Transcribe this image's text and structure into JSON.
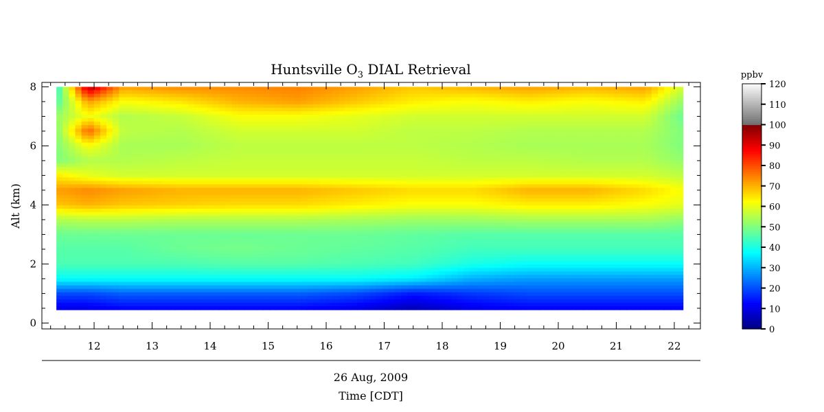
{
  "chart_data": {
    "type": "heatmap",
    "title": "Huntsville O",
    "title_subscript": "3",
    "title_suffix": " DIAL Retrieval",
    "xlabel": "Time [CDT]",
    "xlabel_date": "26 Aug, 2009",
    "ylabel": "Alt (km)",
    "xlim": [
      11.1,
      22.45
    ],
    "ylim": [
      -0.2,
      8.15
    ],
    "x_ticks": [
      12,
      13,
      14,
      15,
      16,
      17,
      18,
      19,
      20,
      21,
      22
    ],
    "y_ticks": [
      0,
      2,
      4,
      6,
      8
    ],
    "data_extent": {
      "x": [
        11.35,
        22.15
      ],
      "y": [
        0.45,
        8.0
      ]
    },
    "colorbar": {
      "label": "ppbv",
      "ticks": [
        0,
        10,
        20,
        30,
        40,
        50,
        60,
        70,
        80,
        90,
        100,
        110,
        120
      ],
      "range": [
        0,
        120
      ],
      "colormap": "jet with grey above 100"
    },
    "profiles": [
      {
        "time": 11.35,
        "altitudes": [
          0.45,
          1.0,
          1.5,
          2.0,
          2.5,
          3.0,
          3.5,
          4.0,
          4.5,
          5.0,
          5.5,
          6.0,
          6.5,
          7.0,
          7.5,
          8.0
        ],
        "ozone": [
          10,
          20,
          38,
          45,
          46,
          48,
          55,
          68,
          72,
          64,
          50,
          50,
          50,
          52,
          45,
          40
        ]
      },
      {
        "time": 11.9,
        "altitudes": [
          0.45,
          1.0,
          1.5,
          2.0,
          2.5,
          3.0,
          3.5,
          4.0,
          4.5,
          5.0,
          5.5,
          6.0,
          6.5,
          7.0,
          7.5,
          8.0
        ],
        "ozone": [
          10,
          20,
          38,
          45,
          46,
          48,
          56,
          70,
          74,
          60,
          55,
          62,
          78,
          62,
          72,
          95
        ]
      },
      {
        "time": 12.5,
        "altitudes": [
          0.45,
          1.0,
          1.5,
          2.0,
          2.5,
          3.0,
          3.5,
          4.0,
          4.5,
          5.0,
          5.5,
          6.0,
          6.5,
          7.0,
          7.5,
          8.0
        ],
        "ozone": [
          12,
          22,
          38,
          45,
          46,
          48,
          56,
          68,
          72,
          58,
          55,
          54,
          56,
          55,
          62,
          72
        ]
      },
      {
        "time": 13.5,
        "altitudes": [
          0.45,
          1.0,
          1.5,
          2.0,
          2.5,
          3.0,
          3.5,
          4.0,
          4.5,
          5.0,
          5.5,
          6.0,
          6.5,
          7.0,
          7.5,
          8.0
        ],
        "ozone": [
          12,
          22,
          38,
          45,
          48,
          48,
          55,
          67,
          70,
          58,
          56,
          54,
          55,
          57,
          65,
          74
        ]
      },
      {
        "time": 14.5,
        "altitudes": [
          0.45,
          1.0,
          1.5,
          2.0,
          2.5,
          3.0,
          3.5,
          4.0,
          4.5,
          5.0,
          5.5,
          6.0,
          6.5,
          7.0,
          7.5,
          8.0
        ],
        "ozone": [
          12,
          22,
          38,
          46,
          49,
          48,
          55,
          66,
          70,
          58,
          57,
          56,
          58,
          62,
          70,
          74
        ]
      },
      {
        "time": 15.5,
        "altitudes": [
          0.45,
          1.0,
          1.5,
          2.0,
          2.5,
          3.0,
          3.5,
          4.0,
          4.5,
          5.0,
          5.5,
          6.0,
          6.5,
          7.0,
          7.5,
          8.0
        ],
        "ozone": [
          12,
          22,
          38,
          46,
          48,
          48,
          55,
          66,
          70,
          58,
          57,
          56,
          58,
          62,
          72,
          75
        ]
      },
      {
        "time": 16.5,
        "altitudes": [
          0.45,
          1.0,
          1.5,
          2.0,
          2.5,
          3.0,
          3.5,
          4.0,
          4.5,
          5.0,
          5.5,
          6.0,
          6.5,
          7.0,
          7.5,
          8.0
        ],
        "ozone": [
          10,
          20,
          38,
          45,
          47,
          48,
          54,
          64,
          68,
          58,
          57,
          56,
          58,
          60,
          68,
          72
        ]
      },
      {
        "time": 17.5,
        "altitudes": [
          0.45,
          1.0,
          1.5,
          2.0,
          2.5,
          3.0,
          3.5,
          4.0,
          4.5,
          5.0,
          5.5,
          6.0,
          6.5,
          7.0,
          7.5,
          8.0
        ],
        "ozone": [
          5,
          15,
          36,
          44,
          46,
          47,
          53,
          62,
          66,
          58,
          57,
          56,
          56,
          58,
          64,
          68
        ]
      },
      {
        "time": 18.5,
        "altitudes": [
          0.45,
          1.0,
          1.5,
          2.0,
          2.5,
          3.0,
          3.5,
          4.0,
          4.5,
          5.0,
          5.5,
          6.0,
          6.5,
          7.0,
          7.5,
          8.0
        ],
        "ozone": [
          10,
          18,
          30,
          40,
          44,
          46,
          53,
          62,
          66,
          58,
          56,
          55,
          56,
          58,
          62,
          70
        ]
      },
      {
        "time": 19.5,
        "altitudes": [
          0.45,
          1.0,
          1.5,
          2.0,
          2.5,
          3.0,
          3.5,
          4.0,
          4.5,
          5.0,
          5.5,
          6.0,
          6.5,
          7.0,
          7.5,
          8.0
        ],
        "ozone": [
          12,
          20,
          28,
          38,
          44,
          46,
          54,
          64,
          70,
          58,
          56,
          54,
          55,
          58,
          64,
          72
        ]
      },
      {
        "time": 20.5,
        "altitudes": [
          0.45,
          1.0,
          1.5,
          2.0,
          2.5,
          3.0,
          3.5,
          4.0,
          4.5,
          5.0,
          5.5,
          6.0,
          6.5,
          7.0,
          7.5,
          8.0
        ],
        "ozone": [
          12,
          20,
          28,
          38,
          44,
          46,
          54,
          64,
          70,
          58,
          55,
          54,
          55,
          58,
          62,
          70
        ]
      },
      {
        "time": 21.5,
        "altitudes": [
          0.45,
          1.0,
          1.5,
          2.0,
          2.5,
          3.0,
          3.5,
          4.0,
          4.5,
          5.0,
          5.5,
          6.0,
          6.5,
          7.0,
          7.5,
          8.0
        ],
        "ozone": [
          12,
          20,
          28,
          38,
          44,
          46,
          54,
          62,
          66,
          58,
          55,
          54,
          55,
          58,
          64,
          72
        ]
      },
      {
        "time": 22.15,
        "altitudes": [
          0.45,
          1.0,
          1.5,
          2.0,
          2.5,
          3.0,
          3.5,
          4.0,
          4.5,
          5.0,
          5.5,
          6.0,
          6.5,
          7.0,
          7.5,
          8.0
        ],
        "ozone": [
          12,
          20,
          28,
          38,
          44,
          46,
          52,
          60,
          62,
          56,
          52,
          50,
          50,
          48,
          52,
          58
        ]
      }
    ]
  }
}
